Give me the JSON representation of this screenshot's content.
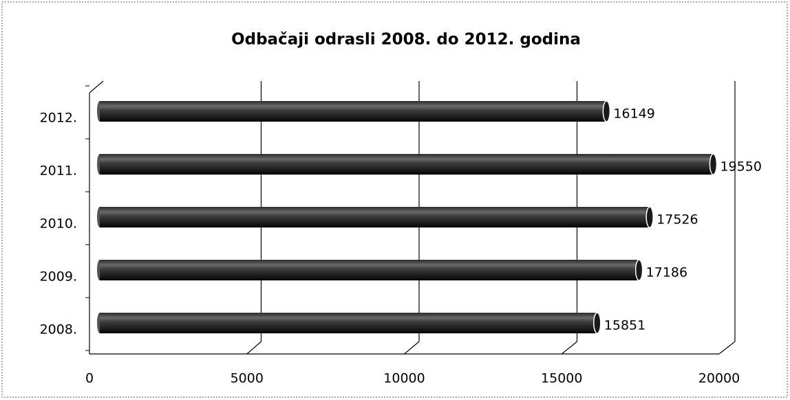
{
  "chart_data": {
    "type": "bar",
    "orientation": "horizontal",
    "title": "Odbačaji odrasli 2008. do 2012. godina",
    "categories": [
      "2008.",
      "2009.",
      "2010.",
      "2011.",
      "2012."
    ],
    "values": [
      15851,
      17186,
      17526,
      19550,
      16149
    ],
    "color": "#1a1a1a",
    "xlim": [
      0,
      20000
    ],
    "xticks": [
      0,
      5000,
      10000,
      15000,
      20000
    ],
    "grid": true
  }
}
